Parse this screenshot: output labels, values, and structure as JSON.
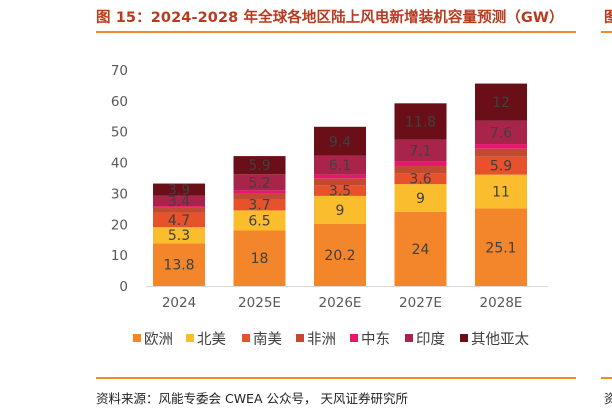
{
  "figure": {
    "title": "图 15：2024-2028 年全球各地区陆上风电新增装机容量预测（GW）",
    "title_cut_glyph": "图",
    "source": "资料来源：风能专委会 CWEA 公众号， 天风证券研究所",
    "source_cut_glyph": "资"
  },
  "chart_data": {
    "type": "bar",
    "stacked": true,
    "title": "2024-2028 年全球各地区陆上风电新增装机容量预测（GW）",
    "xlabel": "",
    "ylabel": "",
    "ylim": [
      0,
      70
    ],
    "yticks": [
      0,
      10,
      20,
      30,
      40,
      50,
      60,
      70
    ],
    "grid": false,
    "legend_position": "bottom",
    "categories": [
      "2024",
      "2025E",
      "2026E",
      "2027E",
      "2028E"
    ],
    "series": [
      {
        "name": "欧洲",
        "color": "#f3862a",
        "values": [
          13.8,
          18,
          20.2,
          24,
          25.1
        ],
        "labels": [
          "13.8",
          "18",
          "20.2",
          "24",
          "25.1"
        ]
      },
      {
        "name": "北美",
        "color": "#f9bd2d",
        "values": [
          5.3,
          6.5,
          9,
          9,
          11
        ],
        "labels": [
          "5.3",
          "6.5",
          "9",
          "9",
          "11"
        ]
      },
      {
        "name": "南美",
        "color": "#e5522b",
        "values": [
          4.7,
          3.7,
          3.5,
          3.6,
          5.9
        ],
        "labels": [
          "4.7",
          "3.7",
          "3.5",
          "3.6",
          "5.9"
        ]
      },
      {
        "name": "非洲",
        "color": "#c04a32",
        "values": [
          1.6,
          1.8,
          2.2,
          2.3,
          2.5
        ],
        "labels": null
      },
      {
        "name": "中东",
        "color": "#e8166f",
        "values": [
          0.5,
          1.0,
          1.2,
          1.4,
          1.5
        ],
        "labels": null
      },
      {
        "name": "印度",
        "color": "#a8244b",
        "values": [
          3.4,
          5.2,
          6.1,
          7.1,
          7.6
        ],
        "labels": [
          "3.4",
          "5.2",
          "6.1",
          "7.1",
          "7.6"
        ]
      },
      {
        "name": "其他亚太",
        "color": "#6a0e17",
        "values": [
          3.9,
          5.9,
          9.4,
          11.8,
          12
        ],
        "labels": [
          "3.9",
          "5.9",
          "9.4",
          "11.8",
          "12"
        ]
      }
    ]
  }
}
